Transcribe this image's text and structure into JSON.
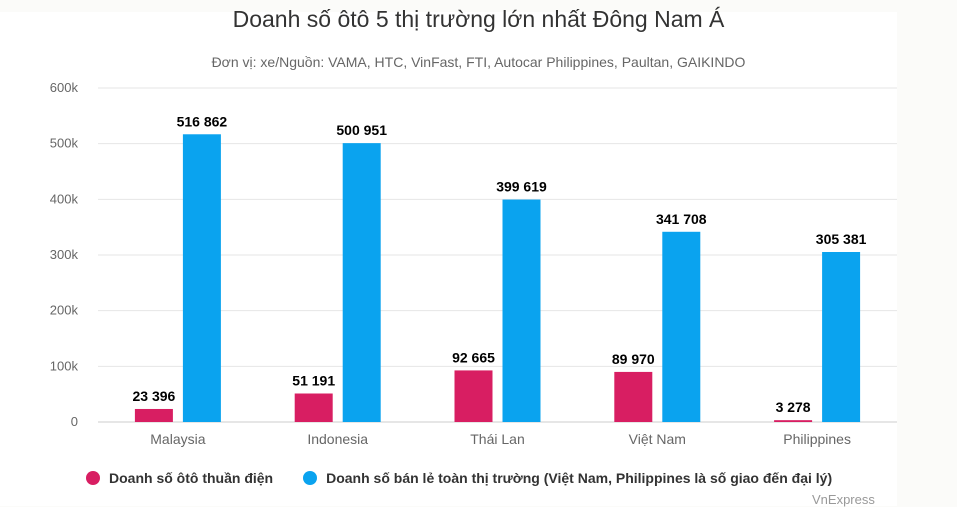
{
  "title": "Doanh số ôtô 5 thị trường lớn nhất Đông Nam Á",
  "subtitle": "Đơn vị: xe/Nguồn: VAMA, HTC, VinFast, FTI, Autocar Philippines, Paultan, GAIKINDO",
  "credit": "VnExpress",
  "colors": {
    "ev": "#d81e62",
    "retail": "#0aa3ef",
    "grid": "#e6e6e6",
    "axis_text": "#666666"
  },
  "chart_data": {
    "type": "bar",
    "categories": [
      "Malaysia",
      "Indonesia",
      "Thái Lan",
      "Việt Nam",
      "Philippines"
    ],
    "series": [
      {
        "name": "Doanh số ôtô thuần điện",
        "values": [
          23396,
          51191,
          92665,
          89970,
          3278
        ],
        "labels": [
          "23 396",
          "51 191",
          "92 665",
          "89 970",
          "3 278"
        ]
      },
      {
        "name": "Doanh số bán lẻ toàn thị trường (Việt Nam, Philippines là số giao đến đại lý)",
        "values": [
          516862,
          500951,
          399619,
          341708,
          305381
        ],
        "labels": [
          "516 862",
          "500 951",
          "399 619",
          "341 708",
          "305 381"
        ]
      }
    ],
    "yticks": [
      0,
      100000,
      200000,
      300000,
      400000,
      500000,
      600000
    ],
    "ytick_labels": [
      "0",
      "100k",
      "200k",
      "300k",
      "400k",
      "500k",
      "600k"
    ],
    "ylim": [
      0,
      600000
    ],
    "grid": true,
    "legend_position": "bottom-left"
  }
}
